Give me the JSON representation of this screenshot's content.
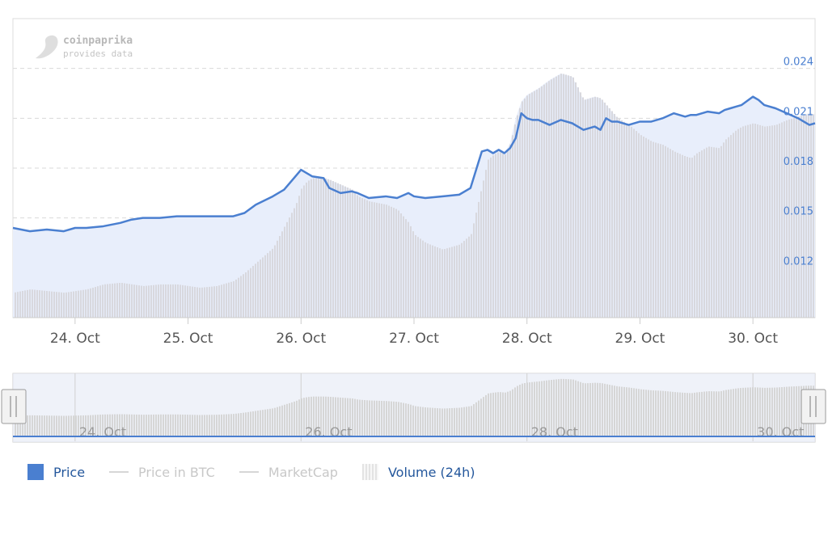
{
  "brand": {
    "name": "coinpaprika",
    "tagline": "provides data"
  },
  "colors": {
    "price_line": "#4a7fd0",
    "area_fill": "#e8eefb",
    "volume_bar": "#d8d8de",
    "grid": "#d9d9d9"
  },
  "legend": [
    {
      "label": "Price",
      "active": true,
      "symbol": "box"
    },
    {
      "label": "Price in BTC",
      "active": false,
      "symbol": "line"
    },
    {
      "label": "MarketCap",
      "active": false,
      "symbol": "line"
    },
    {
      "label": "Volume (24h)",
      "active": true,
      "symbol": "volume"
    }
  ],
  "navigator": {
    "ticks": [
      "24. Oct",
      "26. Oct",
      "28. Oct",
      "30. Oct"
    ]
  },
  "chart_data": {
    "type": "line",
    "title": "",
    "xlabel": "",
    "ylabel": "",
    "x_ticks": [
      "24. Oct",
      "25. Oct",
      "26. Oct",
      "27. Oct",
      "28. Oct",
      "29. Oct",
      "30. Oct"
    ],
    "y_ticks": [
      "0.012",
      "0.015",
      "0.018",
      "0.021",
      "0.024"
    ],
    "xlim": [
      23.45,
      30.55
    ],
    "ylim": [
      0.009,
      0.027
    ],
    "grid": true,
    "legend_position": "bottom-left",
    "series": [
      {
        "name": "Price",
        "x": [
          23.45,
          23.6,
          23.75,
          23.9,
          24.0,
          24.1,
          24.25,
          24.4,
          24.5,
          24.6,
          24.75,
          24.9,
          25.0,
          25.1,
          25.25,
          25.4,
          25.5,
          25.6,
          25.75,
          25.85,
          25.95,
          26.0,
          26.05,
          26.1,
          26.2,
          26.25,
          26.35,
          26.45,
          26.5,
          26.6,
          26.75,
          26.85,
          26.95,
          27.0,
          27.1,
          27.25,
          27.4,
          27.5,
          27.6,
          27.65,
          27.7,
          27.75,
          27.8,
          27.85,
          27.9,
          27.95,
          28.0,
          28.05,
          28.1,
          28.2,
          28.3,
          28.4,
          28.5,
          28.6,
          28.65,
          28.7,
          28.75,
          28.8,
          28.9,
          29.0,
          29.1,
          29.2,
          29.3,
          29.4,
          29.45,
          29.5,
          29.6,
          29.7,
          29.75,
          29.8,
          29.85,
          29.9,
          30.0,
          30.05,
          30.1,
          30.2,
          30.3,
          30.4,
          30.5,
          30.55
        ],
        "values": [
          0.0144,
          0.0142,
          0.0143,
          0.0142,
          0.0144,
          0.0144,
          0.0145,
          0.0147,
          0.0149,
          0.015,
          0.015,
          0.0151,
          0.0151,
          0.0151,
          0.0151,
          0.0151,
          0.0153,
          0.0158,
          0.0163,
          0.0167,
          0.0175,
          0.0179,
          0.0177,
          0.0175,
          0.0174,
          0.0168,
          0.0165,
          0.0166,
          0.0165,
          0.0162,
          0.0163,
          0.0162,
          0.0165,
          0.0163,
          0.0162,
          0.0163,
          0.0164,
          0.0168,
          0.019,
          0.0191,
          0.0189,
          0.0191,
          0.0189,
          0.0192,
          0.0198,
          0.0213,
          0.021,
          0.0209,
          0.0209,
          0.0206,
          0.0209,
          0.0207,
          0.0203,
          0.0205,
          0.0203,
          0.021,
          0.0208,
          0.0208,
          0.0206,
          0.0208,
          0.0208,
          0.021,
          0.0213,
          0.0211,
          0.0212,
          0.0212,
          0.0214,
          0.0213,
          0.0215,
          0.0216,
          0.0217,
          0.0218,
          0.0223,
          0.0221,
          0.0218,
          0.0216,
          0.0213,
          0.021,
          0.0206,
          0.0207
        ]
      },
      {
        "name": "Volume (24h)",
        "x": [
          23.45,
          23.6,
          23.75,
          23.9,
          24.0,
          24.1,
          24.25,
          24.4,
          24.5,
          24.6,
          24.75,
          24.9,
          25.0,
          25.1,
          25.25,
          25.4,
          25.5,
          25.6,
          25.75,
          25.85,
          25.95,
          26.0,
          26.05,
          26.1,
          26.2,
          26.25,
          26.35,
          26.45,
          26.5,
          26.6,
          26.75,
          26.85,
          26.95,
          27.0,
          27.1,
          27.25,
          27.4,
          27.5,
          27.6,
          27.65,
          27.7,
          27.75,
          27.8,
          27.85,
          27.9,
          27.95,
          28.0,
          28.05,
          28.1,
          28.2,
          28.3,
          28.4,
          28.5,
          28.6,
          28.65,
          28.7,
          28.75,
          28.8,
          28.9,
          29.0,
          29.1,
          29.2,
          29.3,
          29.4,
          29.45,
          29.5,
          29.6,
          29.7,
          29.75,
          29.8,
          29.85,
          29.9,
          30.0,
          30.05,
          30.1,
          30.2,
          30.3,
          30.4,
          30.5,
          30.55
        ],
        "values": [
          0.0105,
          0.0107,
          0.0106,
          0.0105,
          0.0106,
          0.0107,
          0.011,
          0.0111,
          0.011,
          0.0109,
          0.011,
          0.011,
          0.0109,
          0.0108,
          0.0109,
          0.0112,
          0.0117,
          0.0123,
          0.0132,
          0.0145,
          0.0158,
          0.0168,
          0.0172,
          0.0174,
          0.0174,
          0.0173,
          0.017,
          0.0167,
          0.0163,
          0.016,
          0.0158,
          0.0155,
          0.0147,
          0.014,
          0.0135,
          0.0131,
          0.0134,
          0.014,
          0.017,
          0.0185,
          0.0188,
          0.019,
          0.0188,
          0.0195,
          0.021,
          0.022,
          0.0224,
          0.0226,
          0.0228,
          0.0233,
          0.0237,
          0.0235,
          0.0221,
          0.0223,
          0.0222,
          0.0218,
          0.0214,
          0.021,
          0.0206,
          0.02,
          0.0196,
          0.0194,
          0.019,
          0.0187,
          0.0186,
          0.0189,
          0.0193,
          0.0192,
          0.0197,
          0.02,
          0.0203,
          0.0205,
          0.0207,
          0.0206,
          0.0205,
          0.0206,
          0.0209,
          0.0211,
          0.0213,
          0.0212
        ]
      }
    ]
  }
}
